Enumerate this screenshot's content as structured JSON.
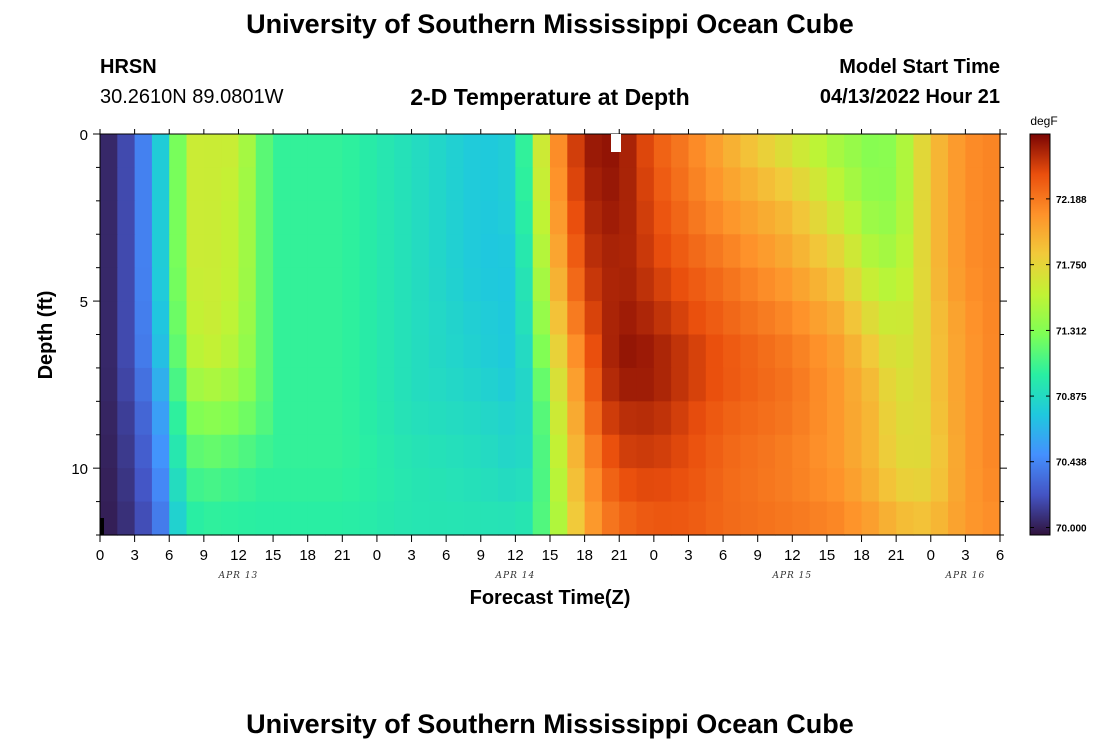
{
  "header": {
    "title": "University of Southern Mississippi Ocean Cube",
    "station": "HRSN",
    "coords": "30.2610N  89.0801W",
    "subtitle": "2-D Temperature at Depth",
    "model_start_label": "Model Start Time",
    "model_start_value": "04/13/2022 Hour 21"
  },
  "footer": {
    "title": "University of Southern Mississippi Ocean Cube"
  },
  "chart_data": {
    "type": "heatmap",
    "title": "2-D Temperature at Depth",
    "xlabel": "Forecast Time(Z)",
    "ylabel": "Depth (ft)",
    "x_ticks": [
      "0",
      "3",
      "6",
      "9",
      "12",
      "15",
      "18",
      "21",
      "0",
      "3",
      "6",
      "9",
      "12",
      "15",
      "18",
      "21",
      "0",
      "3",
      "6",
      "9",
      "12",
      "15",
      "18",
      "21",
      "0",
      "3",
      "6"
    ],
    "date_labels": [
      {
        "label": "APR 13",
        "tick_index": 4
      },
      {
        "label": "APR 14",
        "tick_index": 12
      },
      {
        "label": "APR 15",
        "tick_index": 20
      },
      {
        "label": "APR 16",
        "tick_index": 25
      }
    ],
    "y_ticks": [
      "0",
      "5",
      "10"
    ],
    "ylim": [
      0,
      12
    ],
    "xlim_hours": [
      0,
      78
    ],
    "colorbar": {
      "unit": "degF",
      "labels": [
        "72.188",
        "71.750",
        "71.312",
        "70.875",
        "70.438",
        "70.000"
      ],
      "range": [
        69.95,
        72.62
      ]
    },
    "depths_ft": [
      0,
      2,
      4,
      6,
      7,
      8,
      10,
      12
    ],
    "times_hours": [
      0,
      1.5,
      3,
      5,
      7,
      8.5,
      9.5,
      12,
      14,
      15.5,
      17,
      21,
      27,
      33,
      36,
      37.5,
      39,
      41,
      42.5,
      44,
      46,
      48,
      51,
      54,
      60,
      64,
      67,
      69,
      71,
      73,
      75,
      78
    ],
    "temperature_degF": [
      [
        69.98,
        70.1,
        70.25,
        70.7,
        71.35,
        71.65,
        71.6,
        71.6,
        71.2,
        71.05,
        71.05,
        71.05,
        70.9,
        70.75,
        70.8,
        71.3,
        71.95,
        72.4,
        72.55,
        72.58,
        72.5,
        72.3,
        72.15,
        71.95,
        71.6,
        71.4,
        71.3,
        71.35,
        71.7,
        71.95,
        72.1,
        72.15
      ],
      [
        69.98,
        70.1,
        70.25,
        70.7,
        71.35,
        71.65,
        71.6,
        71.55,
        71.2,
        71.05,
        71.05,
        71.05,
        70.9,
        70.75,
        70.8,
        71.25,
        71.9,
        72.35,
        72.5,
        72.55,
        72.5,
        72.35,
        72.2,
        72.05,
        71.85,
        71.55,
        71.35,
        71.35,
        71.7,
        71.95,
        72.1,
        72.15
      ],
      [
        69.98,
        70.1,
        70.25,
        70.7,
        71.35,
        71.65,
        71.6,
        71.55,
        71.2,
        71.05,
        71.05,
        71.05,
        70.9,
        70.75,
        70.75,
        71.15,
        71.8,
        72.25,
        72.45,
        72.5,
        72.5,
        72.4,
        72.3,
        72.2,
        72.0,
        71.8,
        71.5,
        71.45,
        71.7,
        71.95,
        72.1,
        72.15
      ],
      [
        69.98,
        70.1,
        70.25,
        70.65,
        71.3,
        71.6,
        71.6,
        71.5,
        71.2,
        71.05,
        71.05,
        71.05,
        70.9,
        70.8,
        70.75,
        71.05,
        71.65,
        72.1,
        72.35,
        72.5,
        72.55,
        72.5,
        72.4,
        72.3,
        72.15,
        72.0,
        71.75,
        71.6,
        71.7,
        71.9,
        72.05,
        72.15
      ],
      [
        69.98,
        70.1,
        70.25,
        70.6,
        71.25,
        71.55,
        71.55,
        71.45,
        71.2,
        71.05,
        71.05,
        71.05,
        70.9,
        70.8,
        70.75,
        70.95,
        71.55,
        72.0,
        72.3,
        72.5,
        72.58,
        72.55,
        72.45,
        72.35,
        72.2,
        72.05,
        71.85,
        71.65,
        71.7,
        71.9,
        72.05,
        72.15
      ],
      [
        69.98,
        70.08,
        70.2,
        70.5,
        71.15,
        71.4,
        71.4,
        71.35,
        71.2,
        71.05,
        71.05,
        71.05,
        70.9,
        70.85,
        70.8,
        70.9,
        71.45,
        71.95,
        72.25,
        72.45,
        72.5,
        72.5,
        72.4,
        72.3,
        72.2,
        72.05,
        71.9,
        71.7,
        71.7,
        71.9,
        72.05,
        72.15
      ],
      [
        69.98,
        70.05,
        70.15,
        70.4,
        71.0,
        71.15,
        71.15,
        71.1,
        71.05,
        71.05,
        71.05,
        71.05,
        70.95,
        70.9,
        70.85,
        70.9,
        71.35,
        71.85,
        72.1,
        72.3,
        72.4,
        72.4,
        72.35,
        72.25,
        72.15,
        72.05,
        71.9,
        71.75,
        71.7,
        71.85,
        72.05,
        72.15
      ],
      [
        69.98,
        70.02,
        70.1,
        70.3,
        70.85,
        71.0,
        71.0,
        71.0,
        71.0,
        71.0,
        71.0,
        71.0,
        70.95,
        70.95,
        70.95,
        71.0,
        71.3,
        71.75,
        72.0,
        72.15,
        72.25,
        72.3,
        72.3,
        72.25,
        72.2,
        72.15,
        72.05,
        71.95,
        71.9,
        71.95,
        72.05,
        72.1
      ]
    ]
  }
}
